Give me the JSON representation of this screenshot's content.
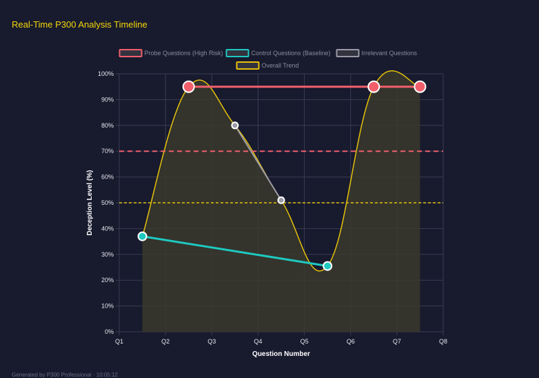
{
  "title": "Real-Time P300 Analysis Timeline",
  "footer": "Generated by P300 Professional · 10:05:12",
  "chart_data": {
    "type": "line",
    "xlabel": "Question Number",
    "ylabel": "Deception Level (%)",
    "x_ticks": [
      "Q1",
      "Q2",
      "Q3",
      "Q4",
      "Q5",
      "Q6",
      "Q7",
      "Q8"
    ],
    "xlim": [
      1,
      8
    ],
    "ylim": [
      0,
      100
    ],
    "y_ticks": [
      0,
      10,
      20,
      30,
      40,
      50,
      60,
      70,
      80,
      90,
      100
    ],
    "y_tick_suffix": "%",
    "grid": true,
    "legend_position": "top",
    "series": [
      {
        "name": "Probe Questions (High Risk)",
        "color": "#f25f6b",
        "points": [
          [
            2.5,
            95
          ],
          [
            6.5,
            95
          ],
          [
            7.5,
            95
          ]
        ]
      },
      {
        "name": "Control Questions (Baseline)",
        "color": "#1ec9c0",
        "points": [
          [
            1.5,
            37
          ],
          [
            5.5,
            25.5
          ]
        ]
      },
      {
        "name": "Irrelevant Questions",
        "color": "#9a9aa6",
        "points": [
          [
            3.5,
            80
          ],
          [
            4.5,
            51
          ]
        ]
      },
      {
        "name": "Overall Trend",
        "color": "#e6c20a",
        "fill": "#3a3a2c",
        "points": [
          [
            1.5,
            37
          ],
          [
            2.5,
            95
          ],
          [
            3.5,
            80
          ],
          [
            4.5,
            51
          ],
          [
            5.5,
            25.5
          ],
          [
            6.5,
            95
          ],
          [
            7.5,
            95
          ]
        ]
      }
    ],
    "thresholds": [
      {
        "value": 70,
        "color": "#f25f6b"
      },
      {
        "value": 50,
        "color": "#e6c20a"
      }
    ]
  }
}
